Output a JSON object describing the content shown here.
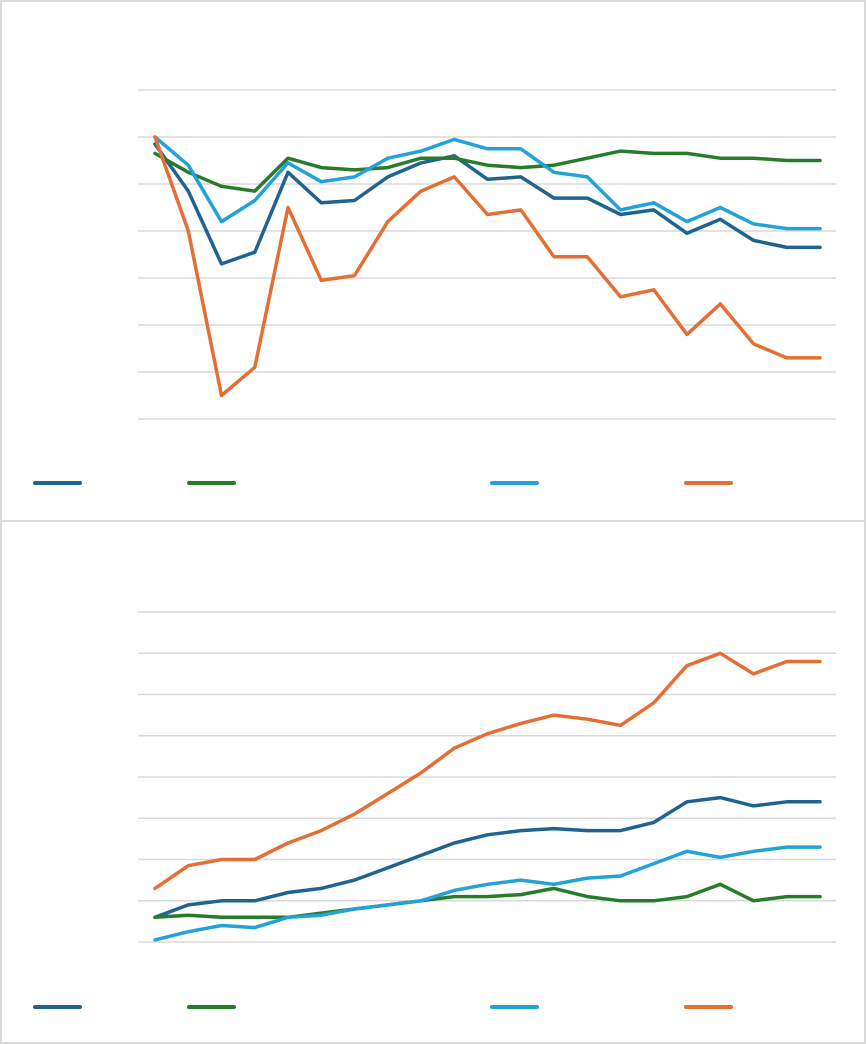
{
  "chart_data": [
    {
      "type": "line",
      "title": "",
      "xlabel": "",
      "ylabel": "",
      "grid": true,
      "legend_position": "bottom",
      "ylim": [
        20,
        90
      ],
      "gridlines": [
        20,
        30,
        40,
        50,
        60,
        70,
        80,
        90
      ],
      "x": [
        1,
        2,
        3,
        4,
        5,
        6,
        7,
        8,
        9,
        10,
        11,
        12,
        13,
        14,
        15,
        16,
        17,
        18,
        19,
        20,
        21
      ],
      "series": [
        {
          "color": "#1f6391",
          "values": [
            78.5,
            68.5,
            53.0,
            55.5,
            72.5,
            66.0,
            66.5,
            71.5,
            74.5,
            76.0,
            71.0,
            71.5,
            67.0,
            67.0,
            63.5,
            64.5,
            59.5,
            62.5,
            58.0,
            56.5,
            56.5
          ]
        },
        {
          "color": "#287b2b",
          "values": [
            76.5,
            72.5,
            69.5,
            68.5,
            75.5,
            73.5,
            73.0,
            73.5,
            75.5,
            75.5,
            74.0,
            73.5,
            74.0,
            75.5,
            77.0,
            76.5,
            76.5,
            75.5,
            75.5,
            75.0,
            75.0
          ]
        },
        {
          "color": "#22a2d8",
          "values": [
            80.0,
            74.0,
            62.0,
            66.5,
            74.5,
            70.5,
            71.5,
            75.5,
            77.0,
            79.5,
            77.5,
            77.5,
            72.5,
            71.5,
            64.5,
            66.0,
            62.0,
            65.0,
            61.5,
            60.5,
            60.5
          ]
        },
        {
          "color": "#e46f34",
          "values": [
            80.0,
            60.0,
            25.0,
            31.0,
            65.0,
            49.5,
            50.5,
            62.0,
            68.5,
            71.5,
            63.5,
            64.5,
            54.5,
            54.5,
            46.0,
            47.5,
            38.0,
            44.5,
            36.0,
            33.0,
            33.0
          ]
        }
      ]
    },
    {
      "type": "line",
      "title": "",
      "xlabel": "",
      "ylabel": "",
      "grid": true,
      "legend_position": "bottom",
      "ylim": [
        0,
        80
      ],
      "gridlines": [
        0,
        10,
        20,
        30,
        40,
        50,
        60,
        70,
        80
      ],
      "x": [
        1,
        2,
        3,
        4,
        5,
        6,
        7,
        8,
        9,
        10,
        11,
        12,
        13,
        14,
        15,
        16,
        17,
        18,
        19,
        20,
        21
      ],
      "series": [
        {
          "color": "#1f6391",
          "values": [
            6,
            9,
            10,
            10,
            12,
            13,
            15,
            18,
            21,
            24,
            26,
            27,
            27.5,
            27,
            27,
            29,
            34,
            35,
            33,
            34,
            34
          ]
        },
        {
          "color": "#287b2b",
          "values": [
            6,
            6.5,
            6,
            6,
            6,
            7,
            8,
            9,
            10,
            11,
            11,
            11.5,
            13,
            11,
            10,
            10,
            11,
            14,
            10,
            11,
            11
          ]
        },
        {
          "color": "#22a2d8",
          "values": [
            0.5,
            2.5,
            4,
            3.5,
            6,
            6.5,
            8,
            9,
            10,
            12.5,
            14,
            15,
            14,
            15.5,
            16,
            19,
            22,
            20.5,
            22,
            23,
            23
          ]
        },
        {
          "color": "#e46f34",
          "values": [
            13,
            18.5,
            20,
            20,
            24,
            27,
            31,
            36,
            41,
            47,
            50.5,
            53,
            55,
            54,
            52.5,
            58,
            67,
            70,
            65,
            68,
            68
          ]
        }
      ]
    }
  ]
}
